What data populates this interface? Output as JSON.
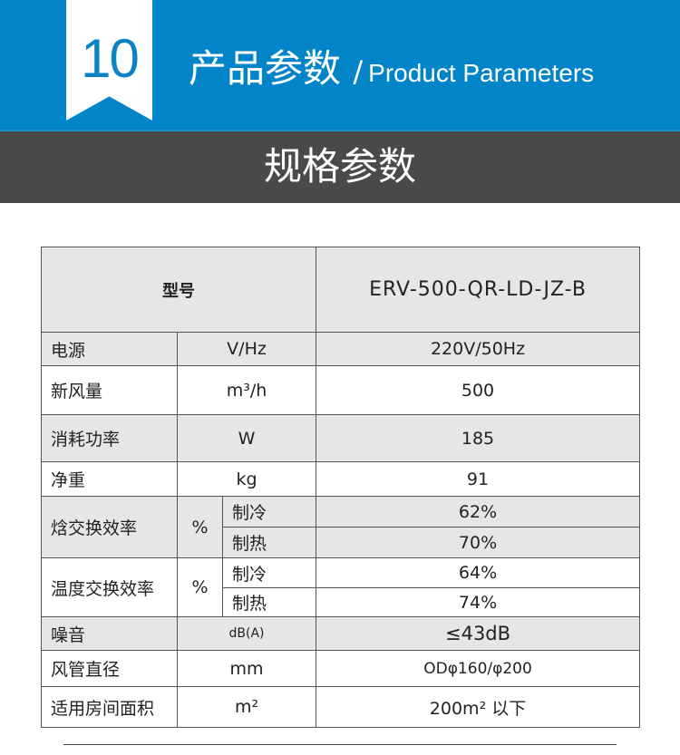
{
  "header": {
    "number": "10",
    "title_cn": "产品参数",
    "separator": "/",
    "title_en": "Product Parameters"
  },
  "section_title": "规格参数",
  "table": {
    "model_label": "型号",
    "model_value": "ERV-500-QR-LD-JZ-B",
    "rows": [
      {
        "label": "电源",
        "unit": "V/Hz",
        "value": "220V/50Hz"
      },
      {
        "label": "新风量",
        "unit": "m³/h",
        "value": "500"
      },
      {
        "label": "消耗功率",
        "unit": "W",
        "value": "185"
      },
      {
        "label": "净重",
        "unit": "kg",
        "value": "91"
      },
      {
        "label": "焓交换效率",
        "unit": "%",
        "sub": [
          {
            "mode": "制冷",
            "value": "62%"
          },
          {
            "mode": "制热",
            "value": "70%"
          }
        ]
      },
      {
        "label": "温度交换效率",
        "unit": "%",
        "sub": [
          {
            "mode": "制冷",
            "value": "64%"
          },
          {
            "mode": "制热",
            "value": "74%"
          }
        ]
      },
      {
        "label": "噪音",
        "unit": "dB(A)",
        "value": "≤43dB"
      },
      {
        "label": "风管直径",
        "unit": "mm",
        "value": "ODφ160/φ200"
      },
      {
        "label": "适用房间面积",
        "unit": "m²",
        "value": "200m² 以下"
      }
    ]
  }
}
